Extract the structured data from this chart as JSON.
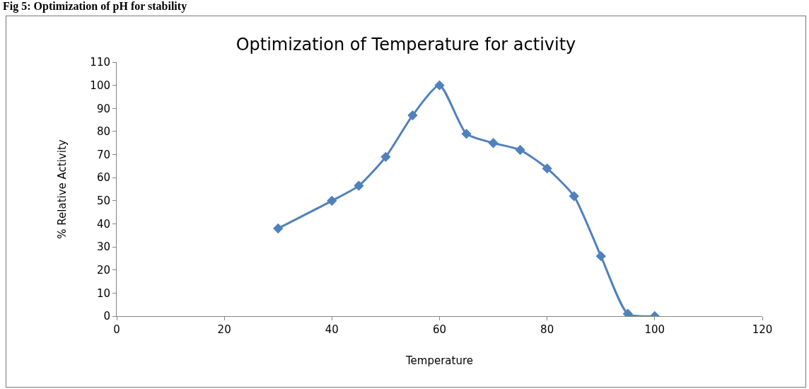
{
  "chart_data": {
    "type": "line",
    "title": "Optimization of Temperature for activity",
    "xlabel": "Temperature",
    "ylabel": "% Relative Activity",
    "annotations": [
      "Fig 5: Optimization of pH for stability"
    ],
    "x": [
      30,
      40,
      45,
      50,
      55,
      60,
      65,
      70,
      75,
      80,
      85,
      90,
      95,
      100
    ],
    "series": [
      {
        "color": "#4f81bd",
        "values": [
          38,
          50,
          56.5,
          69,
          87,
          100,
          79,
          75,
          72,
          64,
          52,
          26,
          1,
          0
        ]
      }
    ],
    "xlim": [
      0,
      120
    ],
    "xticks": [
      0,
      20,
      40,
      60,
      80,
      100,
      120
    ],
    "ylim": [
      0,
      110
    ],
    "yticks": [
      0,
      10,
      20,
      30,
      40,
      50,
      60,
      70,
      80,
      90,
      100,
      110
    ],
    "grid": false,
    "marker": "diamond",
    "line_style": "solid"
  }
}
